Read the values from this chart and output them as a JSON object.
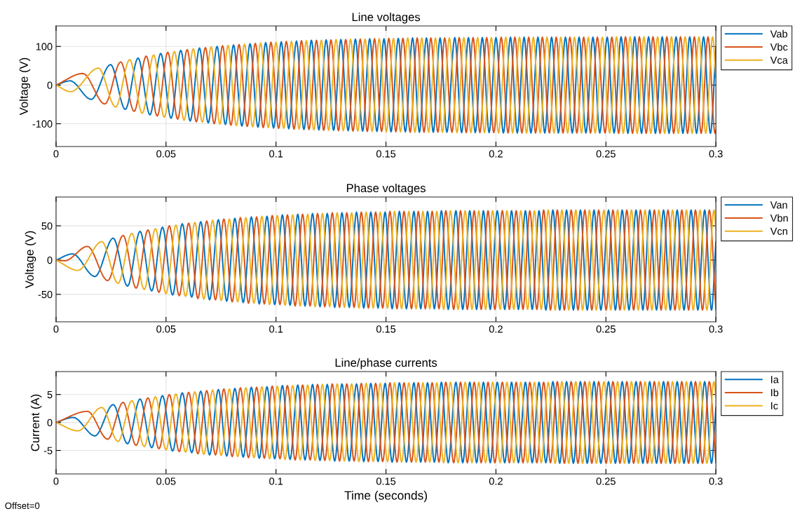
{
  "chart_data": [
    {
      "type": "line",
      "title": "Line voltages",
      "ylabel": "Voltage (V)",
      "xlim": [
        0,
        0.3
      ],
      "xticks": [
        0,
        0.05,
        0.1,
        0.15,
        0.2,
        0.25,
        0.3
      ],
      "ylim": [
        -159,
        153
      ],
      "yticks": [
        -100,
        0,
        100
      ],
      "grid": true,
      "legend": "top right",
      "series": [
        {
          "name": "Vab",
          "color": "#0072bd",
          "x": [
            0,
            0.0064,
            0.016,
            0.0248,
            0.0315,
            0.0373,
            0.0427,
            0.0476,
            0.0523,
            0.0567,
            0.061,
            0.0652,
            0.0692,
            0.0732,
            0.077,
            0.0807,
            0.0845,
            0.0882,
            0.0918,
            0.0953,
            0.0989,
            0.1024,
            0.1058,
            0.1093,
            0.1127,
            0.1161,
            0.1195,
            0.1228,
            0.1262,
            0.1295,
            0.1328,
            0.1361,
            0.1394,
            0.1426,
            0.1459,
            0.1491,
            0.1523,
            0.1556,
            0.1588,
            0.1621,
            0.1652,
            0.1684,
            0.1715,
            0.1746,
            0.1777,
            0.1813,
            0.1844,
            0.1875,
            0.1906,
            0.1938,
            0.1969,
            0.2,
            0.2034,
            0.2066,
            0.2097,
            0.2128,
            0.2159,
            0.2191,
            0.2222,
            0.2253,
            0.2284,
            0.2316,
            0.2347,
            0.2378,
            0.2409,
            0.2441,
            0.2472,
            0.2506,
            0.2537,
            0.2569,
            0.26,
            0.2631,
            0.2662,
            0.2694,
            0.2725,
            0.2756,
            0.2787,
            0.2819,
            0.285,
            0.2881,
            0.2912,
            0.2944,
            0.2975,
            0.3
          ],
          "values": [
            0,
            11,
            -37,
            53,
            -63,
            70,
            -77,
            82,
            -86,
            90,
            -93,
            96,
            -98,
            100,
            -102,
            104,
            -106,
            107,
            -109,
            110,
            -111,
            112,
            -113,
            114,
            -115,
            116,
            -116,
            117,
            -117,
            118,
            -118,
            119,
            -119,
            120,
            -120,
            120,
            -121,
            121,
            -121,
            122,
            -122,
            122,
            -122,
            122,
            -122,
            123,
            -123,
            123,
            -123,
            123,
            -123,
            123,
            -124,
            124,
            -124,
            124,
            -124,
            124,
            -124,
            124,
            -124,
            124,
            -124,
            124,
            -124,
            124,
            -124,
            124,
            -124,
            125,
            -125,
            125,
            -125,
            125,
            -125,
            125,
            -125,
            125,
            -125,
            125,
            -125,
            125,
            -125,
            98
          ]
        },
        {
          "name": "Vbc",
          "color": "#d95319",
          "x": [
            0,
            0.0122,
            0.0222,
            0.0294,
            0.0355,
            0.041,
            0.046,
            0.0508,
            0.0553,
            0.0596,
            0.0638,
            0.0679,
            0.0719,
            0.0757,
            0.0795,
            0.0832,
            0.0869,
            0.0906,
            0.0942,
            0.0977,
            0.1012,
            0.1047,
            0.1082,
            0.1116,
            0.115,
            0.1184,
            0.1217,
            0.125,
            0.1284,
            0.1317,
            0.135,
            0.1383,
            0.1415,
            0.1448,
            0.148,
            0.1513,
            0.1545,
            0.1577,
            0.161,
            0.1642,
            0.1673,
            0.1704,
            0.1736,
            0.1767,
            0.18,
            0.1833,
            0.1865,
            0.1896,
            0.1927,
            0.1958,
            0.199,
            0.2024,
            0.2055,
            0.2086,
            0.2118,
            0.2149,
            0.218,
            0.2211,
            0.2243,
            0.2274,
            0.2305,
            0.2336,
            0.2368,
            0.2399,
            0.243,
            0.2461,
            0.2496,
            0.2527,
            0.2558,
            0.2589,
            0.2621,
            0.2652,
            0.2683,
            0.2714,
            0.2746,
            0.2777,
            0.2808,
            0.2839,
            0.2871,
            0.2902,
            0.2933,
            0.2964,
            0.2996,
            0.3
          ],
          "values": [
            0,
            30,
            -49,
            60,
            -68,
            75,
            -80,
            85,
            -88,
            92,
            -95,
            97,
            -100,
            102,
            -104,
            105,
            -107,
            108,
            -110,
            111,
            -112,
            113,
            -114,
            115,
            -115,
            116,
            -117,
            117,
            -118,
            118,
            -119,
            119,
            -120,
            120,
            -120,
            121,
            -121,
            121,
            -122,
            122,
            -122,
            122,
            -122,
            122,
            -122,
            123,
            -123,
            123,
            -123,
            123,
            -123,
            124,
            -124,
            124,
            -124,
            124,
            -124,
            124,
            -124,
            124,
            -124,
            124,
            -124,
            124,
            -124,
            124,
            -124,
            124,
            -125,
            125,
            -125,
            125,
            -125,
            125,
            -125,
            125,
            -125,
            125,
            -125,
            125,
            -125,
            125,
            -125,
            -116
          ]
        },
        {
          "name": "Vca",
          "color": "#edb120",
          "x": [
            0,
            0.0066,
            0.0193,
            0.0271,
            0.0335,
            0.0392,
            0.0444,
            0.0492,
            0.0538,
            0.0582,
            0.0624,
            0.0665,
            0.0705,
            0.0745,
            0.0782,
            0.082,
            0.0857,
            0.0894,
            0.093,
            0.0965,
            0.1,
            0.1035,
            0.107,
            0.1105,
            0.1138,
            0.1172,
            0.1206,
            0.1239,
            0.1273,
            0.1306,
            0.1339,
            0.1372,
            0.1405,
            0.1437,
            0.1469,
            0.1502,
            0.1534,
            0.1566,
            0.1599,
            0.1632,
            0.1663,
            0.1694,
            0.1725,
            0.1757,
            0.1788,
            0.1823,
            0.1854,
            0.1886,
            0.1917,
            0.1948,
            0.1979,
            0.2012,
            0.2045,
            0.2076,
            0.2107,
            0.2139,
            0.217,
            0.2201,
            0.2232,
            0.2264,
            0.2295,
            0.2326,
            0.2357,
            0.2389,
            0.242,
            0.2451,
            0.2484,
            0.2517,
            0.2548,
            0.2579,
            0.261,
            0.2642,
            0.2673,
            0.2704,
            0.2735,
            0.2767,
            0.2798,
            0.2829,
            0.286,
            0.2892,
            0.2923,
            0.2954,
            0.2985,
            0.3
          ],
          "values": [
            0,
            -17,
            44,
            -57,
            66,
            -73,
            78,
            -83,
            87,
            -91,
            94,
            -96,
            99,
            -101,
            103,
            -105,
            106,
            -108,
            109,
            -110,
            111,
            -112,
            113,
            -114,
            115,
            -116,
            116,
            -117,
            118,
            -118,
            119,
            -119,
            119,
            -120,
            120,
            -121,
            121,
            -121,
            122,
            -122,
            122,
            -122,
            122,
            -122,
            122,
            -123,
            123,
            -123,
            123,
            -123,
            123,
            -124,
            124,
            -124,
            124,
            -124,
            124,
            -124,
            124,
            -124,
            124,
            -124,
            124,
            -124,
            124,
            -124,
            124,
            -124,
            125,
            -125,
            125,
            -125,
            125,
            -125,
            125,
            -125,
            125,
            -125,
            125,
            -125,
            125,
            -125,
            125,
            18
          ]
        }
      ]
    },
    {
      "type": "line",
      "title": "Phase voltages",
      "ylabel": "Voltage (V)",
      "xlim": [
        0,
        0.3
      ],
      "xticks": [
        0,
        0.05,
        0.1,
        0.15,
        0.2,
        0.25,
        0.3
      ],
      "ylim": [
        -90,
        92
      ],
      "yticks": [
        -50,
        0,
        50
      ],
      "grid": true,
      "legend": "top right",
      "series": [
        {
          "name": "Van",
          "color": "#0072bd",
          "x": [
            0,
            0.0075,
            0.0177,
            0.026,
            0.0325,
            0.0382,
            0.0435,
            0.0484,
            0.053,
            0.0574,
            0.0617,
            0.0658,
            0.0698,
            0.0738,
            0.0776,
            0.0813,
            0.0851,
            0.0888,
            0.0924,
            0.0959,
            0.0994,
            0.1029,
            0.1064,
            0.1099,
            0.1132,
            0.1166,
            0.12,
            0.1233,
            0.1267,
            0.13,
            0.1333,
            0.1366,
            0.1399,
            0.1431,
            0.1464,
            0.1496,
            0.1528,
            0.1561,
            0.1593,
            0.1627,
            0.1658,
            0.1689,
            0.172,
            0.1752,
            0.1783,
            0.1818,
            0.1849,
            0.1881,
            0.1912,
            0.1943,
            0.1974,
            0.2006,
            0.204,
            0.2071,
            0.2102,
            0.2134,
            0.2165,
            0.2196,
            0.2227,
            0.2259,
            0.229,
            0.2321,
            0.2352,
            0.2384,
            0.2415,
            0.2446,
            0.2477,
            0.2512,
            0.2543,
            0.2574,
            0.2605,
            0.2637,
            0.2668,
            0.2699,
            0.273,
            0.2762,
            0.2793,
            0.2824,
            0.2855,
            0.2887,
            0.2918,
            0.2949,
            0.298,
            0.3
          ],
          "values": [
            0,
            9,
            -24,
            32,
            -38,
            42,
            -45,
            48,
            -51,
            53,
            -54,
            56,
            -58,
            59,
            -60,
            61,
            -62,
            63,
            -64,
            64,
            -65,
            66,
            -66,
            67,
            -67,
            68,
            -68,
            68,
            -69,
            69,
            -69,
            70,
            -70,
            70,
            -70,
            70,
            -71,
            71,
            -71,
            71,
            -71,
            71,
            -71,
            72,
            -72,
            72,
            -72,
            72,
            -72,
            72,
            -72,
            72,
            -72,
            72,
            -72,
            72,
            -72,
            72,
            -73,
            73,
            -73,
            73,
            -73,
            73,
            -73,
            73,
            -73,
            73,
            -73,
            73,
            -73,
            73,
            -73,
            73,
            -73,
            73,
            -73,
            73,
            -73,
            73,
            -73,
            73,
            -73,
            27
          ]
        },
        {
          "name": "Vbn",
          "color": "#d95319",
          "x": [
            0,
            0.004,
            0.0143,
            0.0235,
            0.0305,
            0.0364,
            0.0418,
            0.0468,
            0.0515,
            0.056,
            0.0603,
            0.0645,
            0.0685,
            0.0725,
            0.0763,
            0.0801,
            0.0838,
            0.0875,
            0.0912,
            0.0947,
            0.0983,
            0.1018,
            0.1052,
            0.1087,
            0.1121,
            0.1155,
            0.1189,
            0.1222,
            0.1256,
            0.1289,
            0.1322,
            0.1355,
            0.1388,
            0.142,
            0.1453,
            0.1485,
            0.1518,
            0.155,
            0.1582,
            0.1616,
            0.1647,
            0.1679,
            0.171,
            0.1741,
            0.1772,
            0.1808,
            0.1839,
            0.187,
            0.1901,
            0.1933,
            0.1964,
            0.1995,
            0.2029,
            0.2061,
            0.2092,
            0.2123,
            0.2154,
            0.2186,
            0.2217,
            0.2248,
            0.2279,
            0.2311,
            0.2342,
            0.2373,
            0.2404,
            0.2436,
            0.2467,
            0.2501,
            0.2532,
            0.2564,
            0.2595,
            0.2626,
            0.2657,
            0.2689,
            0.272,
            0.2751,
            0.2782,
            0.2814,
            0.2845,
            0.2876,
            0.2907,
            0.2939,
            0.297,
            0.3
          ],
          "values": [
            0,
            -1,
            20,
            -30,
            36,
            -41,
            44,
            -47,
            50,
            -52,
            54,
            -56,
            57,
            -58,
            60,
            -61,
            62,
            -63,
            63,
            -64,
            65,
            -65,
            66,
            -67,
            67,
            -67,
            68,
            -68,
            69,
            -69,
            69,
            -69,
            70,
            -70,
            70,
            -70,
            71,
            -71,
            71,
            -71,
            71,
            -71,
            71,
            -71,
            72,
            -72,
            72,
            -72,
            72,
            -72,
            72,
            -72,
            72,
            -72,
            72,
            -72,
            72,
            -72,
            73,
            -73,
            73,
            -73,
            73,
            -73,
            73,
            -73,
            73,
            -73,
            73,
            -73,
            73,
            -73,
            73,
            -73,
            73,
            -73,
            73,
            -73,
            73,
            -73,
            73,
            -73,
            73,
            -72
          ]
        },
        {
          "name": "Vcn",
          "color": "#edb120",
          "x": [
            0,
            0.01,
            0.0208,
            0.0282,
            0.0345,
            0.0401,
            0.0452,
            0.05,
            0.0545,
            0.0589,
            0.0631,
            0.0672,
            0.0712,
            0.0751,
            0.0788,
            0.0826,
            0.0863,
            0.09,
            0.0936,
            0.0971,
            0.1006,
            0.1041,
            0.1076,
            0.111,
            0.1144,
            0.1178,
            0.1211,
            0.1244,
            0.1278,
            0.1311,
            0.1344,
            0.1377,
            0.141,
            0.1442,
            0.1474,
            0.1507,
            0.1539,
            0.1571,
            0.1604,
            0.1637,
            0.1668,
            0.1699,
            0.1731,
            0.1762,
            0.1793,
            0.1828,
            0.186,
            0.1891,
            0.1922,
            0.1953,
            0.1985,
            0.2019,
            0.205,
            0.2081,
            0.2113,
            0.2144,
            0.2175,
            0.2206,
            0.2238,
            0.2269,
            0.23,
            0.2331,
            0.2363,
            0.2394,
            0.2425,
            0.2456,
            0.2491,
            0.2522,
            0.2553,
            0.2584,
            0.2616,
            0.2647,
            0.2678,
            0.2709,
            0.2741,
            0.2772,
            0.2803,
            0.2834,
            0.2866,
            0.2897,
            0.2928,
            0.2959,
            0.2991,
            0.3
          ],
          "values": [
            0,
            -15,
            27,
            -34,
            39,
            -43,
            46,
            -49,
            51,
            -53,
            55,
            -57,
            58,
            -59,
            60,
            -61,
            62,
            -63,
            64,
            -65,
            65,
            -66,
            66,
            -67,
            67,
            -68,
            68,
            -68,
            69,
            -69,
            69,
            -70,
            70,
            -70,
            70,
            -70,
            71,
            -71,
            71,
            -71,
            71,
            -71,
            71,
            -72,
            72,
            -72,
            72,
            -72,
            72,
            -72,
            72,
            -72,
            72,
            -72,
            72,
            -72,
            72,
            -72,
            73,
            -73,
            73,
            -73,
            73,
            -73,
            73,
            -73,
            73,
            -73,
            73,
            -73,
            73,
            -73,
            73,
            -73,
            73,
            -73,
            73,
            -73,
            73,
            -73,
            73,
            -73,
            73,
            45
          ]
        }
      ]
    },
    {
      "type": "line",
      "title": "Line/phase currents",
      "ylabel": "Current (A)",
      "xlabel": "Time (seconds)",
      "xlim": [
        0,
        0.3
      ],
      "xticks": [
        0,
        0.05,
        0.1,
        0.15,
        0.2,
        0.25,
        0.3
      ],
      "ylim": [
        -9.2,
        9.1
      ],
      "yticks": [
        -5,
        0,
        5
      ],
      "grid": true,
      "legend": "top right",
      "annotations": [
        "Offset=0"
      ],
      "series": [
        {
          "name": "Ia",
          "color": "#0072bd",
          "x": [
            0,
            0.0078,
            0.0177,
            0.026,
            0.0325,
            0.0382,
            0.0435,
            0.0484,
            0.053,
            0.0574,
            0.0617,
            0.0658,
            0.0698,
            0.0738,
            0.0776,
            0.0813,
            0.0851,
            0.0888,
            0.0924,
            0.0959,
            0.0994,
            0.1029,
            0.1064,
            0.1099,
            0.1132,
            0.1166,
            0.12,
            0.1233,
            0.1267,
            0.13,
            0.1333,
            0.1366,
            0.1399,
            0.1431,
            0.1464,
            0.1496,
            0.1528,
            0.1561,
            0.1593,
            0.1627,
            0.1658,
            0.1689,
            0.172,
            0.1752,
            0.1783,
            0.1818,
            0.1849,
            0.1881,
            0.1912,
            0.1943,
            0.1974,
            0.2006,
            0.204,
            0.2071,
            0.2102,
            0.2134,
            0.2165,
            0.2196,
            0.2227,
            0.2259,
            0.229,
            0.2321,
            0.2352,
            0.2384,
            0.2415,
            0.2446,
            0.2477,
            0.2512,
            0.2543,
            0.2574,
            0.2605,
            0.2637,
            0.2668,
            0.2699,
            0.273,
            0.2762,
            0.2793,
            0.2824,
            0.2855,
            0.2887,
            0.2918,
            0.2949,
            0.298,
            0.3
          ],
          "values": [
            0,
            0.9,
            -2.4,
            3.2,
            -3.8,
            4.2,
            -4.5,
            4.8,
            -5.1,
            5.3,
            -5.4,
            5.6,
            -5.8,
            5.9,
            -6.0,
            6.1,
            -6.2,
            6.3,
            -6.4,
            6.4,
            -6.5,
            6.6,
            -6.6,
            6.7,
            -6.7,
            6.8,
            -6.8,
            6.8,
            -6.9,
            6.9,
            -6.9,
            6.9,
            -7.0,
            7.0,
            -7.0,
            7.0,
            -7.1,
            7.1,
            -7.1,
            7.1,
            -7.1,
            7.1,
            -7.1,
            7.2,
            -7.2,
            7.2,
            -7.2,
            7.2,
            -7.2,
            7.2,
            -7.2,
            7.2,
            -7.2,
            7.2,
            -7.2,
            7.2,
            -7.2,
            7.2,
            -7.2,
            7.3,
            -7.3,
            7.3,
            -7.3,
            7.3,
            -7.3,
            7.3,
            -7.3,
            7.3,
            -7.3,
            7.3,
            -7.3,
            7.3,
            -7.3,
            7.3,
            -7.3,
            7.3,
            -7.3,
            7.3,
            -7.3,
            7.3,
            -7.3,
            7.3,
            -7.3,
            2.7
          ]
        },
        {
          "name": "Ib",
          "color": "#d95319",
          "x": [
            0,
            0.0143,
            0.0235,
            0.0305,
            0.0364,
            0.0418,
            0.0468,
            0.0515,
            0.056,
            0.0603,
            0.0645,
            0.0685,
            0.0725,
            0.0763,
            0.0801,
            0.0838,
            0.0875,
            0.0912,
            0.0947,
            0.0983,
            0.1018,
            0.1052,
            0.1087,
            0.1121,
            0.1155,
            0.1189,
            0.1222,
            0.1256,
            0.1289,
            0.1322,
            0.1355,
            0.1388,
            0.142,
            0.1453,
            0.1485,
            0.1518,
            0.155,
            0.1582,
            0.1616,
            0.1647,
            0.1679,
            0.171,
            0.1741,
            0.1772,
            0.1808,
            0.1839,
            0.187,
            0.1901,
            0.1933,
            0.1964,
            0.1995,
            0.2029,
            0.2061,
            0.2092,
            0.2123,
            0.2154,
            0.2186,
            0.2217,
            0.2248,
            0.2279,
            0.2311,
            0.2342,
            0.2373,
            0.2404,
            0.2436,
            0.2467,
            0.2501,
            0.2532,
            0.2564,
            0.2595,
            0.2626,
            0.2657,
            0.2689,
            0.272,
            0.2751,
            0.2782,
            0.2814,
            0.2845,
            0.2876,
            0.2907,
            0.2939,
            0.297,
            0.3
          ],
          "values": [
            0,
            2.0,
            -3.0,
            3.6,
            -4.1,
            4.4,
            -4.7,
            5.0,
            -5.2,
            5.4,
            -5.6,
            5.7,
            -5.8,
            6.0,
            -6.1,
            6.2,
            -6.3,
            6.3,
            -6.4,
            6.5,
            -6.5,
            6.6,
            -6.7,
            6.7,
            -6.7,
            6.8,
            -6.8,
            6.9,
            -6.9,
            6.9,
            -6.9,
            7.0,
            -7.0,
            7.0,
            -7.0,
            7.1,
            -7.1,
            7.1,
            -7.1,
            7.1,
            -7.1,
            7.1,
            -7.1,
            7.2,
            -7.2,
            7.2,
            -7.2,
            7.2,
            -7.2,
            7.2,
            -7.2,
            7.2,
            -7.2,
            7.2,
            -7.2,
            7.2,
            -7.2,
            7.2,
            -7.2,
            7.3,
            -7.3,
            7.3,
            -7.3,
            7.3,
            -7.3,
            7.3,
            -7.3,
            7.3,
            -7.3,
            7.3,
            -7.3,
            7.3,
            -7.3,
            7.3,
            -7.3,
            7.3,
            -7.3,
            7.3,
            -7.3,
            7.3,
            -7.3,
            7.3,
            -7.2
          ]
        },
        {
          "name": "Ic",
          "color": "#edb120",
          "x": [
            0,
            0.01,
            0.0208,
            0.0282,
            0.0345,
            0.0401,
            0.0452,
            0.05,
            0.0545,
            0.0589,
            0.0631,
            0.0672,
            0.0712,
            0.0751,
            0.0788,
            0.0826,
            0.0863,
            0.09,
            0.0936,
            0.0971,
            0.1006,
            0.1041,
            0.1076,
            0.111,
            0.1144,
            0.1178,
            0.1211,
            0.1244,
            0.1278,
            0.1311,
            0.1344,
            0.1377,
            0.141,
            0.1442,
            0.1474,
            0.1507,
            0.1539,
            0.1571,
            0.1604,
            0.1637,
            0.1668,
            0.1699,
            0.1731,
            0.1762,
            0.1793,
            0.1828,
            0.186,
            0.1891,
            0.1922,
            0.1953,
            0.1985,
            0.2019,
            0.205,
            0.2081,
            0.2113,
            0.2144,
            0.2175,
            0.2206,
            0.2238,
            0.2269,
            0.23,
            0.2331,
            0.2363,
            0.2394,
            0.2425,
            0.2456,
            0.2491,
            0.2522,
            0.2553,
            0.2584,
            0.2616,
            0.2647,
            0.2678,
            0.2709,
            0.2741,
            0.2772,
            0.2803,
            0.2834,
            0.2866,
            0.2897,
            0.2928,
            0.2959,
            0.2991,
            0.3
          ],
          "values": [
            0,
            -1.5,
            2.7,
            -3.4,
            3.9,
            -4.3,
            4.6,
            -4.9,
            5.1,
            -5.3,
            5.5,
            -5.7,
            5.8,
            -5.9,
            6.0,
            -6.1,
            6.2,
            -6.3,
            6.4,
            -6.5,
            6.5,
            -6.6,
            6.6,
            -6.7,
            6.7,
            -6.8,
            6.8,
            -6.8,
            6.9,
            -6.9,
            6.9,
            -7.0,
            7.0,
            -7.0,
            7.0,
            -7.0,
            7.1,
            -7.1,
            7.1,
            -7.1,
            7.1,
            -7.1,
            7.1,
            -7.2,
            7.2,
            -7.2,
            7.2,
            -7.2,
            7.2,
            -7.2,
            7.2,
            -7.2,
            7.2,
            -7.2,
            7.2,
            -7.2,
            7.2,
            -7.2,
            7.2,
            -7.3,
            7.3,
            -7.3,
            7.3,
            -7.3,
            7.3,
            -7.3,
            7.3,
            -7.3,
            7.3,
            -7.3,
            7.3,
            -7.3,
            7.3,
            -7.3,
            7.3,
            -7.3,
            7.3,
            -7.3,
            7.3,
            -7.3,
            7.3,
            -7.3,
            7.3,
            4.5
          ]
        }
      ]
    }
  ]
}
